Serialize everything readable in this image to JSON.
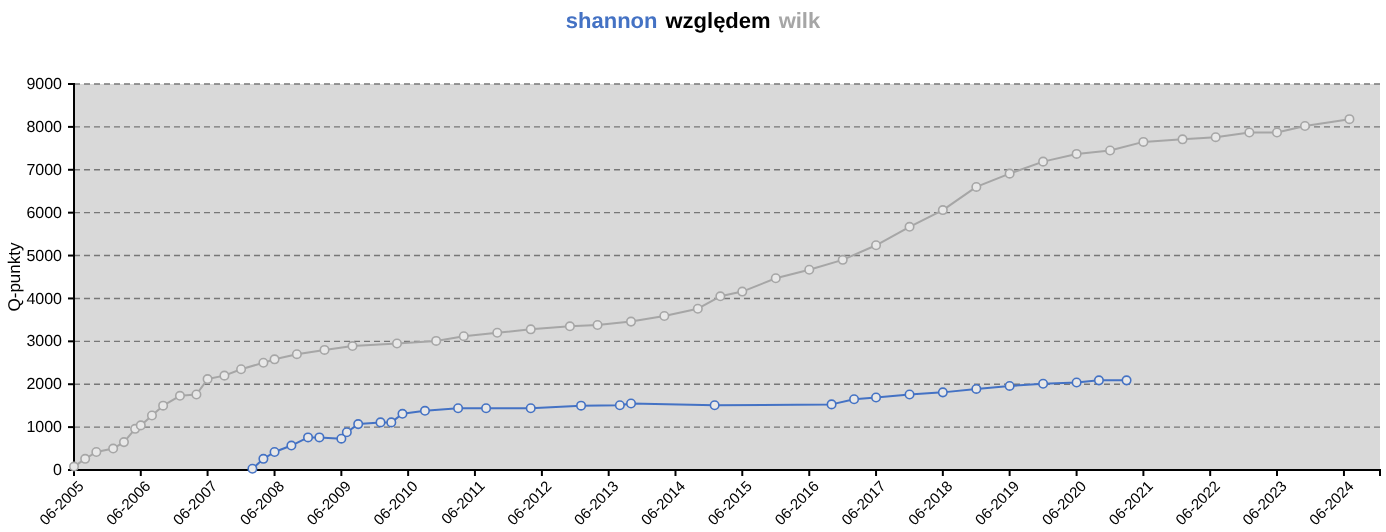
{
  "chart_data": {
    "type": "line",
    "title": "względem",
    "ylabel": "Q-punkty",
    "xlim": [
      "2005-06-01",
      "2024-12-15"
    ],
    "xticks": [
      {
        "value": "2005-06-01",
        "label": "06-2005"
      },
      {
        "value": "2006-06-01",
        "label": "06-2006"
      },
      {
        "value": "2007-06-01",
        "label": "06-2007"
      },
      {
        "value": "2008-06-01",
        "label": "06-2008"
      },
      {
        "value": "2009-06-01",
        "label": "06-2009"
      },
      {
        "value": "2010-06-01",
        "label": "06-2010"
      },
      {
        "value": "2011-06-01",
        "label": "06-2011"
      },
      {
        "value": "2012-06-01",
        "label": "06-2012"
      },
      {
        "value": "2013-06-01",
        "label": "06-2013"
      },
      {
        "value": "2014-06-01",
        "label": "06-2014"
      },
      {
        "value": "2015-06-01",
        "label": "06-2015"
      },
      {
        "value": "2016-06-01",
        "label": "06-2016"
      },
      {
        "value": "2017-06-01",
        "label": "06-2017"
      },
      {
        "value": "2018-06-01",
        "label": "06-2018"
      },
      {
        "value": "2019-06-01",
        "label": "06-2019"
      },
      {
        "value": "2020-06-01",
        "label": "06-2020"
      },
      {
        "value": "2021-06-01",
        "label": "06-2021"
      },
      {
        "value": "2022-06-01",
        "label": "06-2022"
      },
      {
        "value": "2023-06-01",
        "label": "06-2023"
      },
      {
        "value": "2024-06-01",
        "label": "06-2024"
      }
    ],
    "ylim": [
      0,
      9000
    ],
    "yticks": [
      0,
      1000,
      2000,
      3000,
      4000,
      5000,
      6000,
      7000,
      8000,
      9000
    ],
    "grid": "y",
    "marker": "circle",
    "line_style": "solid",
    "legend": "top",
    "series": [
      {
        "name": "shannon",
        "color": "#4472c4",
        "x": [
          "2008-02",
          "2008-04",
          "2008-06",
          "2008-09",
          "2008-12",
          "2009-02",
          "2009-06",
          "2009-07",
          "2009-09",
          "2010-01",
          "2010-03",
          "2010-05",
          "2010-09",
          "2011-03",
          "2011-08",
          "2012-04",
          "2013-01",
          "2013-08",
          "2013-10",
          "2015-01",
          "2016-10",
          "2017-02",
          "2017-06",
          "2017-12",
          "2018-06",
          "2018-12",
          "2019-06",
          "2019-12",
          "2020-06",
          "2020-10",
          "2021-03"
        ],
        "values": [
          30,
          260,
          420,
          570,
          760,
          760,
          730,
          880,
          1070,
          1110,
          1110,
          1310,
          1380,
          1440,
          1440,
          1440,
          1500,
          1510,
          1550,
          1510,
          1530,
          1650,
          1690,
          1760,
          1810,
          1890,
          1960,
          2010,
          2040,
          2090,
          2090
        ]
      },
      {
        "name": "wilk",
        "color": "#a6a6a6",
        "x": [
          "2005-06",
          "2005-08",
          "2005-10",
          "2006-01",
          "2006-03",
          "2006-05",
          "2006-06",
          "2006-08",
          "2006-10",
          "2007-01",
          "2007-04",
          "2007-06",
          "2007-09",
          "2007-12",
          "2008-04",
          "2008-06",
          "2008-10",
          "2009-03",
          "2009-08",
          "2010-04",
          "2010-11",
          "2011-04",
          "2011-10",
          "2012-04",
          "2012-11",
          "2013-04",
          "2013-10",
          "2014-04",
          "2014-10",
          "2015-02",
          "2015-06",
          "2015-12",
          "2016-06",
          "2016-12",
          "2017-06",
          "2017-12",
          "2018-06",
          "2018-12",
          "2019-06",
          "2019-12",
          "2020-06",
          "2020-12",
          "2021-06",
          "2022-01",
          "2022-07",
          "2023-01",
          "2023-06",
          "2023-11",
          "2024-07"
        ],
        "values": [
          80,
          260,
          420,
          500,
          650,
          960,
          1040,
          1270,
          1500,
          1730,
          1760,
          2120,
          2200,
          2350,
          2500,
          2580,
          2700,
          2800,
          2890,
          2950,
          3010,
          3120,
          3200,
          3280,
          3350,
          3380,
          3460,
          3590,
          3760,
          4050,
          4160,
          4470,
          4670,
          4900,
          5240,
          5670,
          6060,
          6600,
          6910,
          7190,
          7370,
          7450,
          7650,
          7710,
          7760,
          7870,
          7870,
          8020,
          8180
        ]
      }
    ]
  }
}
